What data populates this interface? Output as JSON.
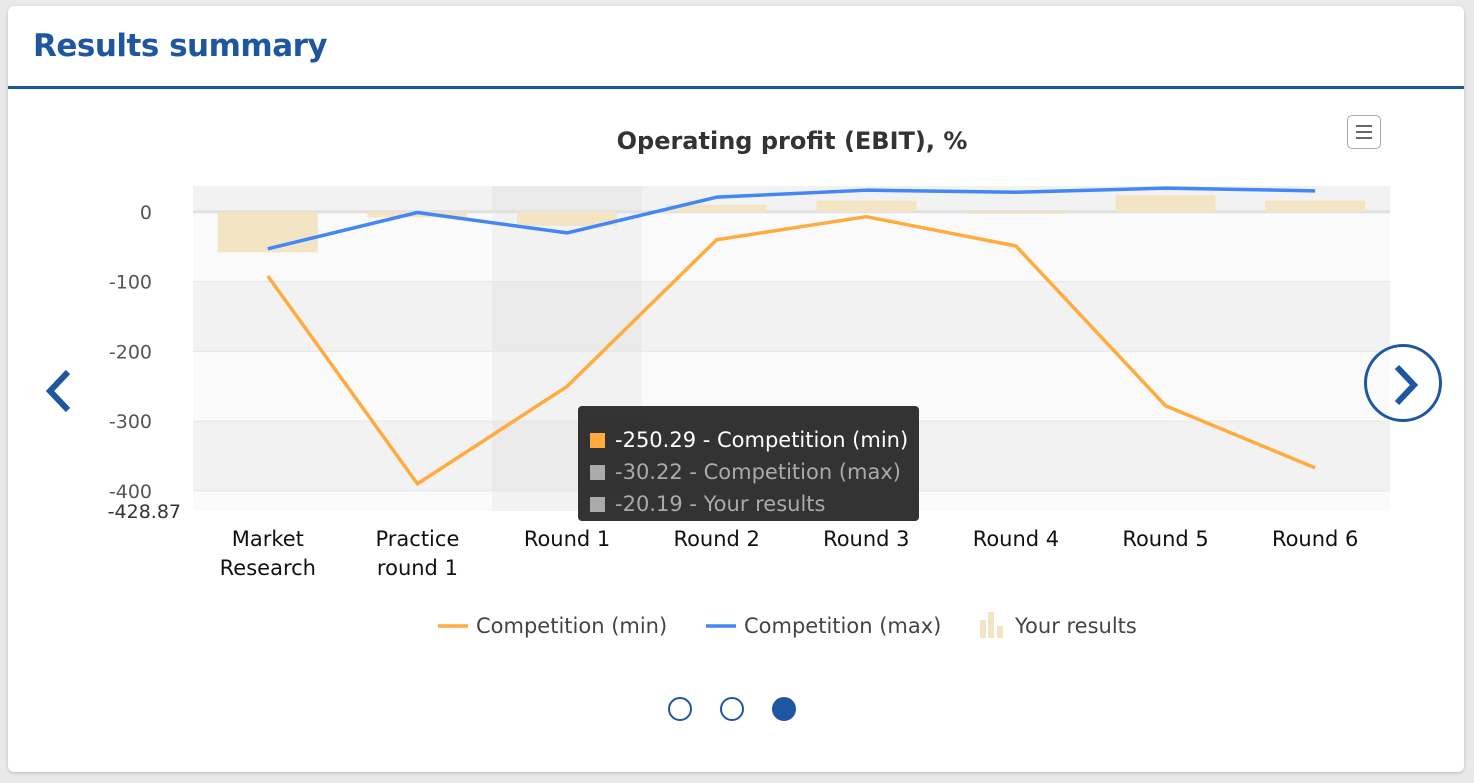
{
  "header": {
    "title": "Results summary"
  },
  "colors": {
    "min": "#ffab3d",
    "max": "#4287f5",
    "bar": "#f3e5c4",
    "accent": "#1e56a0"
  },
  "chart_data": {
    "type": "line",
    "title": "Operating profit (EBIT), %",
    "categories": [
      "Market Research",
      "Practice round 1",
      "Round 1",
      "Round 2",
      "Round 3",
      "Round 4",
      "Round 5",
      "Round 6"
    ],
    "category_lines": [
      [
        "Market",
        "Research"
      ],
      [
        "Practice",
        "round 1"
      ],
      [
        "Round 1"
      ],
      [
        "Round 2"
      ],
      [
        "Round 3"
      ],
      [
        "Round 4"
      ],
      [
        "Round 5"
      ],
      [
        "Round 6"
      ]
    ],
    "series": [
      {
        "name": "Competition (min)",
        "type": "line",
        "values": [
          -92,
          -390,
          -250.29,
          -40,
          -7,
          -49,
          -278,
          -367
        ]
      },
      {
        "name": "Competition (max)",
        "type": "line",
        "values": [
          -53,
          -1,
          -30.22,
          21,
          31,
          28,
          34,
          30
        ]
      },
      {
        "name": "Your results",
        "type": "bar",
        "values": [
          -58,
          -8,
          -20.19,
          10,
          16,
          -1,
          24,
          16
        ]
      }
    ],
    "yticks": [
      "0",
      "-100",
      "-200",
      "-300",
      "-400",
      "-428.87"
    ],
    "ytick_values": [
      0,
      -100,
      -200,
      -300,
      -400,
      -428.87
    ],
    "ylim": [
      -428.87,
      37
    ],
    "legend_position": "bottom",
    "highlighted_category": "Round 1"
  },
  "tooltip": {
    "rows": [
      "-250.29 - Competition (min)",
      "-30.22 - Competition (max)",
      "-20.19 - Your results"
    ]
  },
  "pagination": {
    "pages": 3,
    "active": 3
  }
}
